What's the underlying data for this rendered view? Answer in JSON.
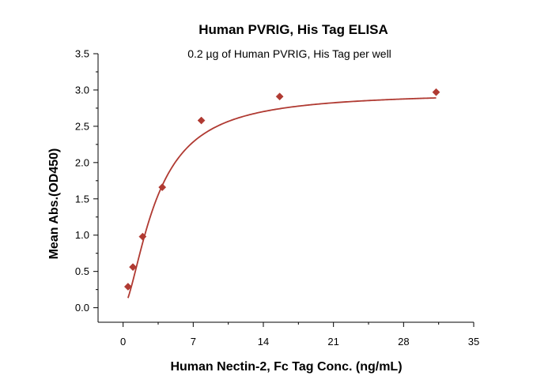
{
  "chart_data": {
    "type": "scatter",
    "title": "Human PVRIG, His Tag ELISA",
    "subtitle": "0.2 µg of Human PVRIG, His Tag per well",
    "xlabel": "Human Nectin-2, Fc Tag Conc. (ng/mL)",
    "ylabel": "Mean Abs.(OD450)",
    "xlim": [
      -2.5,
      35
    ],
    "ylim": [
      -0.2,
      3.5
    ],
    "xticks": [
      0,
      7,
      14,
      21,
      28,
      35
    ],
    "yticks": [
      0.0,
      0.5,
      1.0,
      1.5,
      2.0,
      2.5,
      3.0,
      3.5
    ],
    "xtick_labels": [
      "0",
      "7",
      "14",
      "21",
      "28",
      "35"
    ],
    "ytick_labels": [
      "0.0",
      "0.5",
      "1.0",
      "1.5",
      "2.0",
      "2.5",
      "3.0",
      "3.5"
    ],
    "grid": false,
    "series": [
      {
        "x": [
          0.49,
          0.98,
          1.95,
          3.91,
          7.81,
          15.63,
          31.25
        ],
        "y": [
          0.29,
          0.56,
          0.98,
          1.66,
          2.58,
          2.91,
          2.97
        ],
        "marker": "diamond",
        "color": "#b03a32"
      }
    ],
    "fit_curve": {
      "type": "4PL",
      "bottom": 0.0,
      "top": 2.97,
      "ec50": 3.3,
      "hill": 1.6,
      "color": "#b03a32"
    }
  }
}
